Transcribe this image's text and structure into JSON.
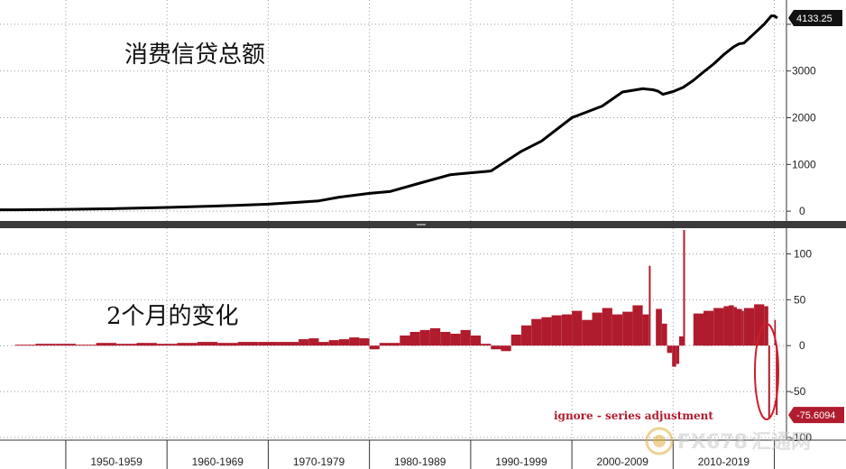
{
  "chart_data": [
    {
      "type": "line",
      "title": "消费信贷总额",
      "xlabel": "",
      "ylabel": "",
      "xlim": [
        1943.5,
        2021.2
      ],
      "ylim": [
        -210,
        4520
      ],
      "yticks": [
        0,
        1000,
        2000,
        3000
      ],
      "last_value_label": "4133.25",
      "grid": true,
      "color": "#000000",
      "x": [
        1943.5,
        1945,
        1950,
        1955,
        1960,
        1965,
        1970,
        1973,
        1975,
        1977,
        1980,
        1982,
        1985,
        1988,
        1990,
        1992,
        1995,
        1997,
        2000,
        2003,
        2005,
        2007,
        2008,
        2008.5,
        2009,
        2010,
        2011,
        2012,
        2013,
        2014,
        2015,
        2016,
        2016.5,
        2017,
        2018,
        2019,
        2019.7,
        2020,
        2020.3
      ],
      "y": [
        30,
        30,
        40,
        55,
        80,
        110,
        150,
        190,
        220,
        300,
        380,
        420,
        600,
        780,
        820,
        860,
        1280,
        1500,
        2000,
        2250,
        2550,
        2620,
        2600,
        2570,
        2500,
        2560,
        2650,
        2800,
        2980,
        3150,
        3350,
        3520,
        3580,
        3600,
        3800,
        4000,
        4180,
        4180,
        4133
      ]
    },
    {
      "type": "bar",
      "title": "2个月的变化",
      "xlabel": "",
      "ylabel": "",
      "xlim": [
        1943.5,
        2021.2
      ],
      "ylim": [
        -103,
        128
      ],
      "yticks": [
        -100,
        -50,
        0,
        50,
        100
      ],
      "last_value_label": "-75.6094",
      "grid": true,
      "color": "#b01c2e",
      "x": [
        1945,
        1947,
        1949,
        1951,
        1953,
        1955,
        1957,
        1959,
        1961,
        1963,
        1965,
        1967,
        1969,
        1971,
        1973,
        1974,
        1975,
        1976,
        1977,
        1978,
        1979,
        1980,
        1981,
        1983,
        1984,
        1985,
        1986,
        1987,
        1988,
        1989,
        1990,
        1991,
        1992,
        1993,
        1994,
        1995,
        1996,
        1997,
        1998,
        1999,
        2000,
        2001,
        2002,
        2003,
        2004,
        2005,
        2006,
        2007,
        2007.6,
        2008.3,
        2008.9,
        2009.4,
        2009.9,
        2010.3,
        2010.6,
        2011,
        2012,
        2013,
        2014,
        2015,
        2015.5,
        2016,
        2016.3,
        2016.8,
        2017,
        2018,
        2019,
        2019.4,
        2020,
        2020.15
      ],
      "values": [
        1,
        2,
        2,
        1,
        3,
        2,
        3,
        2,
        3,
        4,
        3,
        4,
        4,
        4,
        7,
        8,
        4,
        6,
        7,
        9,
        8,
        -4,
        3,
        11,
        15,
        17,
        19,
        15,
        13,
        17,
        11,
        2,
        -4,
        -6,
        12,
        22,
        29,
        31,
        33,
        34,
        38,
        28,
        36,
        41,
        34,
        37,
        44,
        34,
        87,
        40,
        24,
        -8,
        -23,
        -20,
        10,
        126,
        35,
        38,
        41,
        43,
        44,
        42,
        40,
        38,
        41,
        45,
        43,
        -80,
        28,
        -75.6094
      ]
    }
  ],
  "x_axis": {
    "labels": [
      "1950-1959",
      "1960-1969",
      "1970-1979",
      "1980-1989",
      "1990-1999",
      "2000-2009",
      "2010-2019"
    ]
  },
  "annotation": {
    "text": "ignore - series adjustment",
    "color": "#b01c2e"
  },
  "watermark": {
    "text_latin": "FX678",
    "text_cn": "汇通网"
  }
}
